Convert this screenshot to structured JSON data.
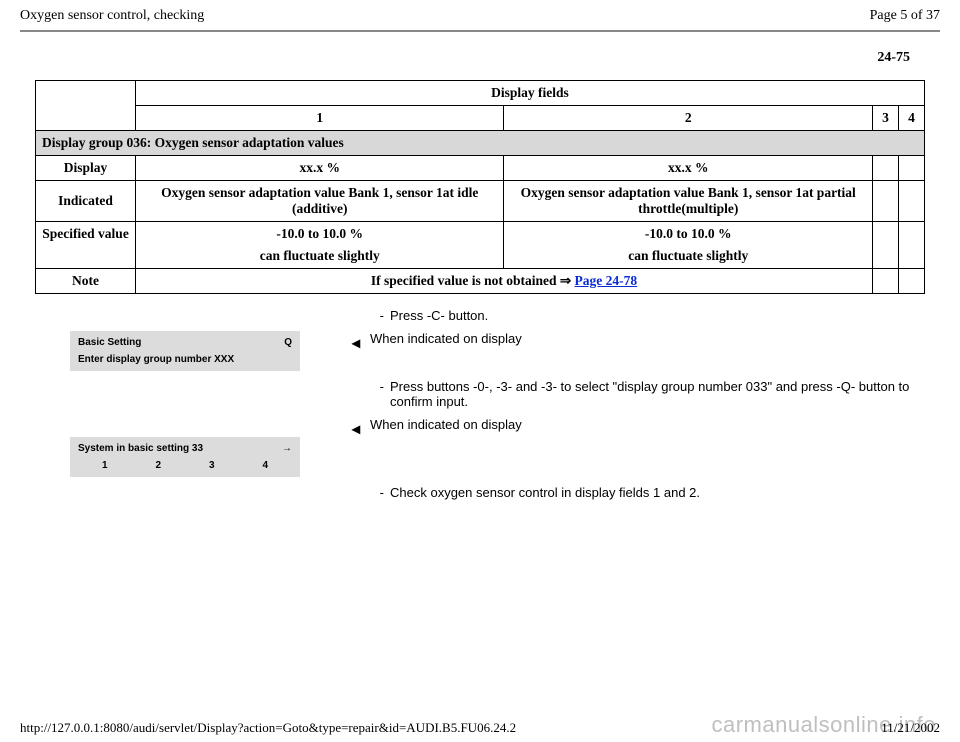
{
  "header": {
    "title": "Oxygen sensor control, checking",
    "page_indicator": "Page 5 of 37",
    "section_number": "24-75"
  },
  "table": {
    "display_fields_label": "Display fields",
    "field_numbers": [
      "1",
      "2",
      "3",
      "4"
    ],
    "group_heading": "Display group 036: Oxygen sensor adaptation values",
    "rows": {
      "display": {
        "label": "Display",
        "c1": "xx.x %",
        "c2": "xx.x %"
      },
      "indicated": {
        "label": "Indicated",
        "c1": "Oxygen sensor adaptation value Bank 1, sensor 1at idle (additive)",
        "c2": "Oxygen sensor adaptation value Bank 1, sensor 1at partial throttle(multiple)"
      },
      "specified": {
        "label": "Specified value",
        "c1_line1": "-10.0 to 10.0 %",
        "c1_line2": "can fluctuate slightly",
        "c2_line1": "-10.0 to 10.0 %",
        "c2_line2": "can fluctuate slightly"
      },
      "note": {
        "label": "Note",
        "text_prefix": "If specified value is not obtained ",
        "link_text": "Page 24-78"
      }
    }
  },
  "instructions": {
    "step1": "Press -C- button.",
    "heading2": "When indicated on display",
    "step2": "Press buttons -0-, -3- and -3- to select \"display group number 033\" and press -Q- button to confirm input.",
    "heading3": "When indicated on display",
    "step3": "Check oxygen sensor control in display fields 1 and 2."
  },
  "vag": {
    "box1": {
      "line1_left": "Basic Setting",
      "line1_right": "Q",
      "line2": "Enter display group number XXX"
    },
    "box2": {
      "line1_left": "System in basic setting 33",
      "arrow": "→",
      "cols": [
        "1",
        "2",
        "3",
        "4"
      ]
    }
  },
  "footer": {
    "url": "http://127.0.0.1:8080/audi/servlet/Display?action=Goto&type=repair&id=AUDI.B5.FU06.24.2",
    "date": "11/21/2002"
  },
  "watermark": "carmanualsonline.info",
  "colors": {
    "shade": "#d8d8d8",
    "link": "#0b2bd5",
    "watermark": "#bfbfbf",
    "rule": "#888888"
  }
}
